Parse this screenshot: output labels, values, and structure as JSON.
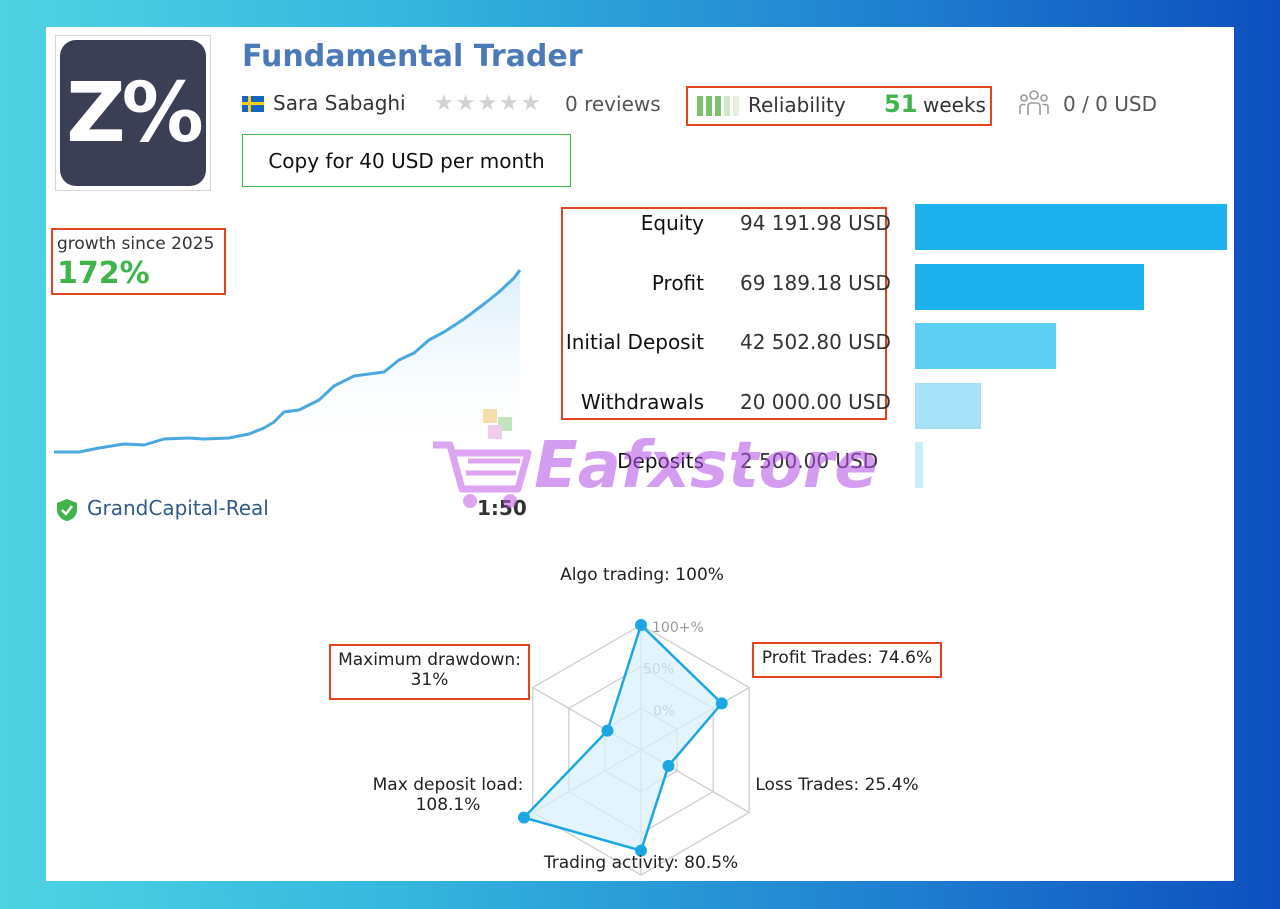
{
  "header": {
    "title": "Fundamental Trader",
    "logo_text": "Z%",
    "author": "Sara Sabaghi",
    "stars": "★★★★★",
    "reviews": "0 reviews",
    "reliability_label": "Reliability",
    "reliability_weeks": "51",
    "reliability_unit": "weeks",
    "subscribers": "0 / 0 USD",
    "copy_button": "Copy for 40 USD per month"
  },
  "growth": {
    "label": "growth since 2025",
    "value": "172%"
  },
  "account": {
    "server": "GrandCapital-Real",
    "leverage": "1:50"
  },
  "stats": [
    {
      "label": "Equity",
      "value": "94 191.98 USD",
      "amount": 94191.98
    },
    {
      "label": "Profit",
      "value": "69 189.18 USD",
      "amount": 69189.18
    },
    {
      "label": "Initial Deposit",
      "value": "42 502.80 USD",
      "amount": 42502.8
    },
    {
      "label": "Withdrawals",
      "value": "20 000.00 USD",
      "amount": 20000.0
    },
    {
      "label": "Deposits",
      "value": "2 500.00 USD",
      "amount": 2500.0
    }
  ],
  "radar": {
    "algo": "Algo trading: 100%",
    "profit": "Profit Trades: 74.6%",
    "loss": "Loss Trades: 25.4%",
    "activity": "Trading activity: 80.5%",
    "load_1": "Max deposit load:",
    "load_2": "108.1%",
    "drawdown_1": "Maximum drawdown:",
    "drawdown_2": "31%",
    "scale_100": "100+%",
    "scale_50": "50%",
    "scale_0": "0%"
  },
  "watermark": "Eafxstore",
  "colors": {
    "accent_green": "#3fb44a",
    "title_blue": "#4a7ab8",
    "highlight_red": "#e0451f",
    "chart_line": "#4aa8e0",
    "radar_line": "#1aa7e4"
  }
}
